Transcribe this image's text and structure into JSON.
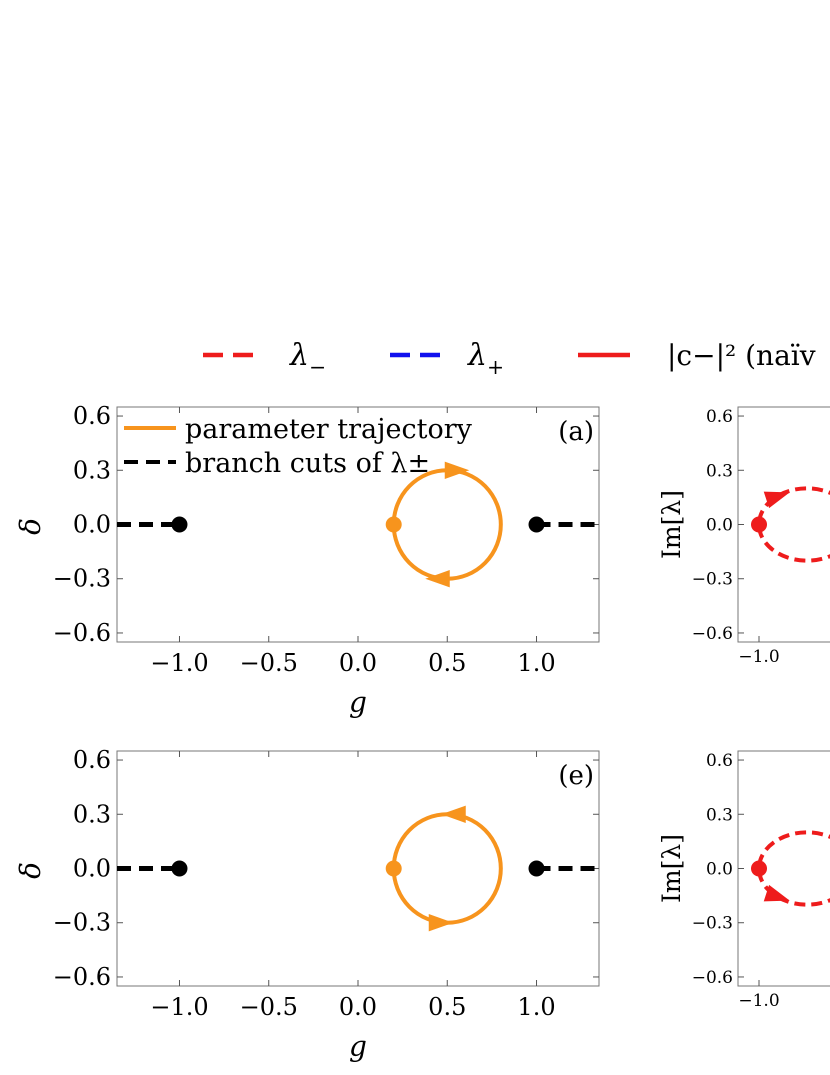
{
  "legend": {
    "items": [
      {
        "label": "λ−",
        "color": "#ee1c1c",
        "style": "dashed"
      },
      {
        "label": "λ+",
        "color": "#1010ee",
        "style": "dashed"
      },
      {
        "label": "|c−|² (naïv",
        "color": "#ee1c1c",
        "style": "solid"
      }
    ]
  },
  "colors": {
    "trajectory": "#f7941d",
    "branch_cut": "#000000",
    "lambda_minus": "#ee1c1c",
    "lambda_plus": "#1010ee"
  },
  "chart_data": [
    {
      "id": "a",
      "type": "line",
      "panel_label": "(a)",
      "xlabel": "g",
      "ylabel": "δ",
      "xlim": [
        -1.35,
        1.35
      ],
      "ylim": [
        -0.65,
        0.65
      ],
      "xticks": [
        -1.0,
        -0.5,
        0.0,
        0.5,
        1.0
      ],
      "xtick_labels": [
        "−1.0",
        "−0.5",
        "0.0",
        "0.5",
        "1.0"
      ],
      "yticks": [
        0.6,
        0.3,
        0.0,
        -0.3,
        -0.6
      ],
      "ytick_labels": [
        "0.6",
        "0.3",
        "0.0",
        "−0.3",
        "−0.6"
      ],
      "legend": [
        {
          "label": "parameter trajectory",
          "color": "#f7941d",
          "style": "solid"
        },
        {
          "label": "branch cuts of λ±",
          "color": "#000000",
          "style": "dashed"
        }
      ],
      "trajectory": {
        "center": [
          0.5,
          0.0
        ],
        "radius_g": 0.3,
        "radius_delta": 0.3,
        "start": [
          0.2,
          0.0
        ],
        "direction": "clockwise"
      },
      "exceptional_points": [
        [
          -1.0,
          0.0
        ],
        [
          1.0,
          0.0
        ]
      ],
      "branch_cuts": [
        {
          "from": -1.35,
          "to": -1.0
        },
        {
          "from": 1.0,
          "to": 1.35
        }
      ]
    },
    {
      "id": "e",
      "type": "line",
      "panel_label": "(e)",
      "xlabel": "g",
      "ylabel": "δ",
      "xlim": [
        -1.35,
        1.35
      ],
      "ylim": [
        -0.65,
        0.65
      ],
      "xticks": [
        -1.0,
        -0.5,
        0.0,
        0.5,
        1.0
      ],
      "xtick_labels": [
        "−1.0",
        "−0.5",
        "0.0",
        "0.5",
        "1.0"
      ],
      "yticks": [
        0.6,
        0.3,
        0.0,
        -0.3,
        -0.6
      ],
      "ytick_labels": [
        "0.6",
        "0.3",
        "0.0",
        "−0.3",
        "−0.6"
      ],
      "trajectory": {
        "center": [
          0.5,
          0.0
        ],
        "radius_g": 0.3,
        "radius_delta": 0.3,
        "start": [
          0.2,
          0.0
        ],
        "direction": "counterclockwise"
      },
      "exceptional_points": [
        [
          -1.0,
          0.0
        ],
        [
          1.0,
          0.0
        ]
      ],
      "branch_cuts": [
        {
          "from": -1.35,
          "to": -1.0
        },
        {
          "from": 1.0,
          "to": 1.35
        }
      ]
    },
    {
      "id": "b",
      "type": "line",
      "ylabel": "Im[λ]",
      "xlim": [
        -1.05,
        0.0
      ],
      "ylim": [
        -0.65,
        0.65
      ],
      "xticks": [
        -1.0
      ],
      "xtick_labels": [
        "−1.0"
      ],
      "yticks": [
        0.6,
        0.3,
        0.0,
        -0.3,
        -0.6
      ],
      "ytick_labels": [
        "0.6",
        "0.3",
        "0.0",
        "−0.3",
        "−0.6"
      ],
      "series": [
        {
          "name": "λ−",
          "center": [
            -0.6,
            0.0
          ],
          "radius_re": 0.4,
          "radius_im": 0.2,
          "start": [
            -1.0,
            0.0
          ],
          "direction": "clockwise"
        }
      ]
    },
    {
      "id": "f",
      "type": "line",
      "ylabel": "Im[λ]",
      "xlim": [
        -1.05,
        0.0
      ],
      "ylim": [
        -0.65,
        0.65
      ],
      "xticks": [
        -1.0
      ],
      "xtick_labels": [
        "−1.0"
      ],
      "yticks": [
        0.6,
        0.3,
        0.0,
        -0.3,
        -0.6
      ],
      "ytick_labels": [
        "0.6",
        "0.3",
        "0.0",
        "−0.3",
        "−0.6"
      ],
      "series": [
        {
          "name": "λ−",
          "center": [
            -0.6,
            0.0
          ],
          "radius_re": 0.4,
          "radius_im": 0.2,
          "start": [
            -1.0,
            0.0
          ],
          "direction": "counterclockwise"
        }
      ]
    }
  ]
}
